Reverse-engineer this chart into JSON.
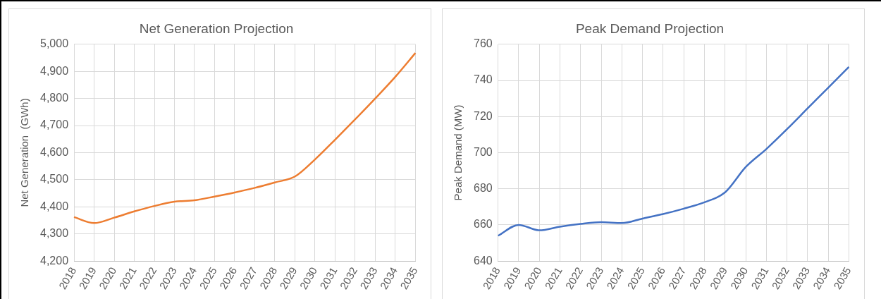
{
  "chart_data": [
    {
      "type": "line",
      "title": "Net Generation Projection",
      "ylabel": "Net Generation  (GWh)",
      "categories": [
        "2018",
        "2019",
        "2020",
        "2021",
        "2022",
        "2023",
        "2024",
        "2025",
        "2026",
        "2027",
        "2028",
        "2029",
        "2030",
        "2031",
        "2032",
        "2033",
        "2034",
        "2035"
      ],
      "series": [
        {
          "color": "#ed7d31",
          "values": [
            4362,
            4340,
            4360,
            4383,
            4403,
            4419,
            4424,
            4438,
            4453,
            4470,
            4490,
            4512,
            4575,
            4648,
            4723,
            4800,
            4880,
            4968
          ]
        }
      ],
      "ylim": [
        4200,
        5000
      ],
      "yticks": [
        {
          "value": 4200,
          "label": "4,200"
        },
        {
          "value": 4300,
          "label": "4,300"
        },
        {
          "value": 4400,
          "label": "4,400"
        },
        {
          "value": 4500,
          "label": "4,500"
        },
        {
          "value": 4600,
          "label": "4,600"
        },
        {
          "value": 4700,
          "label": "4,700"
        },
        {
          "value": 4800,
          "label": "4,800"
        },
        {
          "value": 4900,
          "label": "4,900"
        },
        {
          "value": 5000,
          "label": "5,000"
        }
      ],
      "grid": true,
      "legend": false
    },
    {
      "type": "line",
      "title": "Peak Demand Projection",
      "ylabel": "Peak Demand (MW)",
      "categories": [
        "2018",
        "2019",
        "2020",
        "2021",
        "2022",
        "2023",
        "2024",
        "2025",
        "2026",
        "2027",
        "2028",
        "2029",
        "2030",
        "2031",
        "2032",
        "2033",
        "2034",
        "2035"
      ],
      "series": [
        {
          "color": "#4472c4",
          "values": [
            654,
            660,
            657,
            659,
            660.5,
            661.5,
            661,
            663.5,
            666,
            669,
            672.5,
            678,
            692,
            702,
            713,
            724.5,
            736,
            747.5
          ]
        }
      ],
      "ylim": [
        640,
        760
      ],
      "yticks": [
        640,
        660,
        680,
        700,
        720,
        740,
        760
      ],
      "grid": true,
      "legend": false
    }
  ]
}
